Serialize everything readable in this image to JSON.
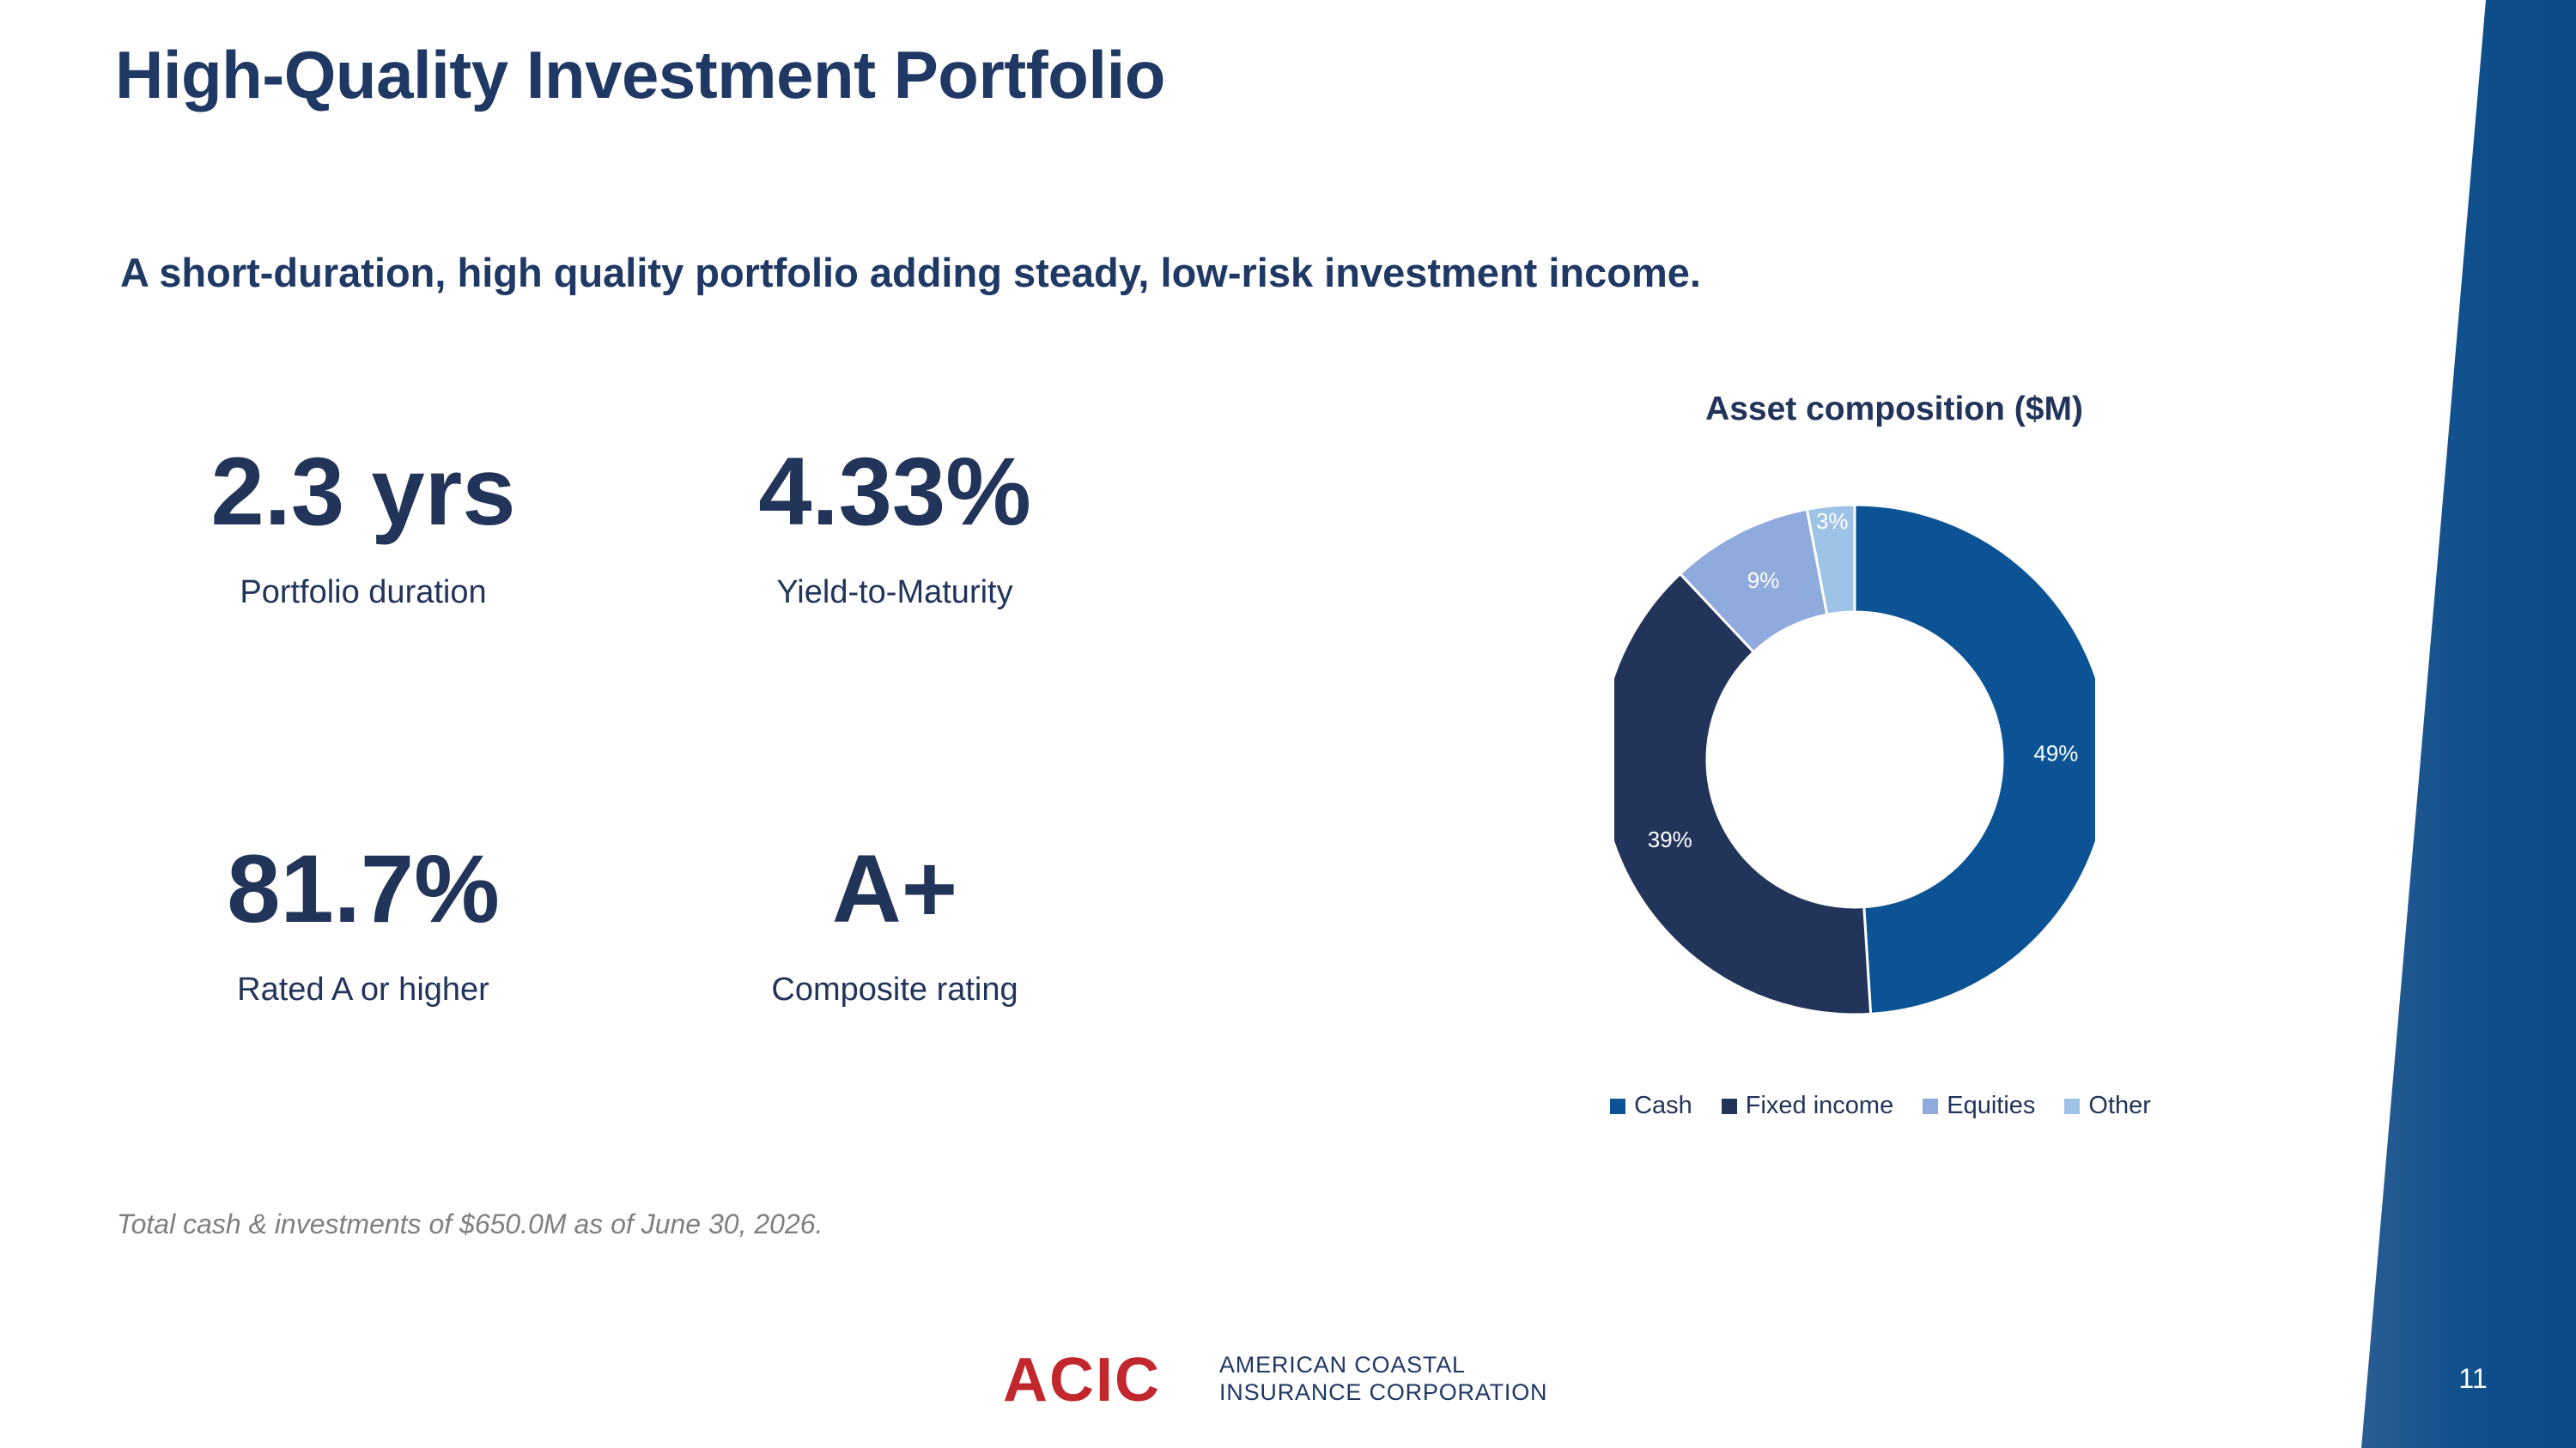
{
  "slide": {
    "title": "High-Quality Investment Portfolio",
    "subtitle": "A short-duration, high quality portfolio adding steady, low-risk investment income.",
    "page_number": "11",
    "accent_color": "#0b5394"
  },
  "kpis": [
    {
      "value": "2.3 yrs",
      "label": "Portfolio duration"
    },
    {
      "value": "4.33%",
      "label": "Yield-to-Maturity"
    },
    {
      "value": "81.7%",
      "label": "Rated A or higher"
    },
    {
      "value": "A+",
      "label": "Composite rating"
    }
  ],
  "chart_data": {
    "type": "pie",
    "subtype": "donut",
    "title": "Asset composition ($M)",
    "categories": [
      "Cash",
      "Fixed income",
      "Equities",
      "Other"
    ],
    "values": [
      49,
      39,
      9,
      3
    ],
    "unit": "%",
    "data_labels": [
      "49%",
      "39%",
      "9%",
      "3%"
    ],
    "colors": [
      "#0b5394",
      "#22345a",
      "#8faadc",
      "#9dc3e6"
    ],
    "legend": "bottom"
  },
  "footnote": "Total cash & investments of $650.0M as of June 30, 2026.",
  "logo": {
    "mark": "ACIC",
    "line1": "AMERICAN COASTAL",
    "line2": "INSURANCE CORPORATION",
    "mark_color": "#c1272d"
  }
}
